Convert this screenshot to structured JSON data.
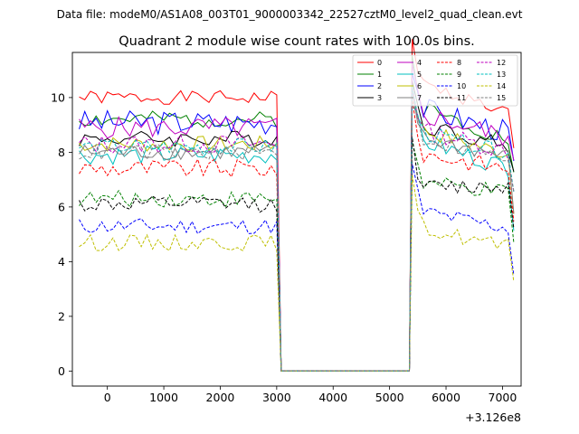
{
  "header": {
    "data_file": "Data file: modeM0/AS1A08_003T01_9000003342_22527cztM0_level2_quad_clean.evt"
  },
  "chart_data": {
    "type": "line",
    "title": "Quadrant 2 module wise count rates with 100.0s bins.",
    "xlabel": "",
    "ylabel": "",
    "x_offset_label": "+3.126e8",
    "xlim": [
      -620,
      7330
    ],
    "ylim": [
      -0.55,
      11.65
    ],
    "x_ticks": [
      0,
      1000,
      2000,
      3000,
      4000,
      5000,
      6000,
      7000
    ],
    "y_ticks": [
      0,
      2,
      4,
      6,
      8,
      10
    ],
    "x_tick_labels": [
      "0",
      "1000",
      "2000",
      "3000",
      "4000",
      "5000",
      "6000",
      "7000"
    ],
    "y_tick_labels": [
      "0",
      "2",
      "4",
      "6",
      "8",
      "10"
    ],
    "legend_position": "top-right",
    "gap": {
      "start": 3000,
      "end": 5400,
      "drop_at": 3080,
      "rise_at": 5350
    },
    "x_start": -500,
    "x_step": 100,
    "series": [
      {
        "name": "0",
        "color": "#ff0000",
        "dash": false,
        "base": 10.0,
        "end": 9.5,
        "amp": 0.25,
        "seed": 1
      },
      {
        "name": "1",
        "color": "#008000",
        "dash": false,
        "base": 9.2,
        "end": 8.5,
        "amp": 0.3,
        "seed": 2
      },
      {
        "name": "2",
        "color": "#0000ff",
        "dash": false,
        "base": 9.1,
        "end": 8.8,
        "amp": 0.45,
        "seed": 3
      },
      {
        "name": "3",
        "color": "#000000",
        "dash": false,
        "base": 8.5,
        "end": 8.3,
        "amp": 0.3,
        "seed": 4
      },
      {
        "name": "4",
        "color": "#bf00bf",
        "dash": false,
        "base": 8.9,
        "end": 8.6,
        "amp": 0.4,
        "seed": 5
      },
      {
        "name": "5",
        "color": "#00bfbf",
        "dash": false,
        "base": 7.9,
        "end": 7.5,
        "amp": 0.35,
        "seed": 6
      },
      {
        "name": "6",
        "color": "#bfbf00",
        "dash": false,
        "base": 8.3,
        "end": 8.0,
        "amp": 0.3,
        "seed": 7
      },
      {
        "name": "7",
        "color": "#808080",
        "dash": false,
        "base": 8.0,
        "end": 7.9,
        "amp": 0.3,
        "seed": 8
      },
      {
        "name": "8",
        "color": "#ff0000",
        "dash": true,
        "base": 7.4,
        "end": 7.5,
        "amp": 0.35,
        "seed": 9
      },
      {
        "name": "9",
        "color": "#008000",
        "dash": true,
        "base": 6.3,
        "end": 6.6,
        "amp": 0.3,
        "seed": 10
      },
      {
        "name": "10",
        "color": "#0000ff",
        "dash": true,
        "base": 5.3,
        "end": 5.3,
        "amp": 0.3,
        "seed": 11
      },
      {
        "name": "11",
        "color": "#000000",
        "dash": true,
        "base": 6.1,
        "end": 6.9,
        "amp": 0.3,
        "seed": 12
      },
      {
        "name": "12",
        "color": "#bf00bf",
        "dash": true,
        "base": 8.3,
        "end": 8.1,
        "amp": 0.35,
        "seed": 13
      },
      {
        "name": "13",
        "color": "#00bfbf",
        "dash": true,
        "base": 8.2,
        "end": 8.0,
        "amp": 0.3,
        "seed": 14
      },
      {
        "name": "14",
        "color": "#bfbf00",
        "dash": true,
        "base": 4.7,
        "end": 4.6,
        "amp": 0.3,
        "seed": 15
      },
      {
        "name": "15",
        "color": "#808080",
        "dash": true,
        "base": 8.0,
        "end": 7.8,
        "amp": 0.3,
        "seed": 16
      }
    ]
  }
}
